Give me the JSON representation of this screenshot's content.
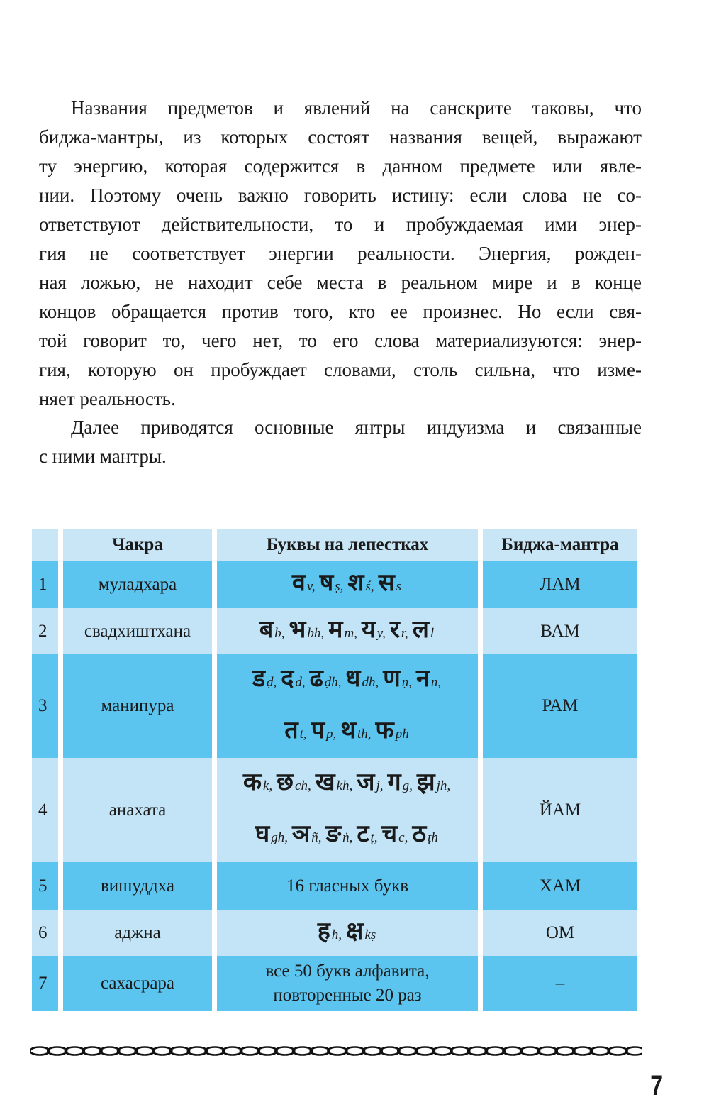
{
  "paragraphs": [
    {
      "lines": [
        "Названия предметов и явлений на санскрите таковы, что",
        "биджа-мантры, из которых состоят названия вещей, выражают",
        "ту энергию, которая содержится в данном предмете или явле-",
        "нии. Поэтому очень важно говорить истину: если слова не со-",
        "ответствуют действительности, то и пробуждаемая ими энер-",
        "гия не соответствует энергии реальности. Энергия, рожден-",
        "ная ложью, не находит себе места в реальном мире и в конце",
        "концов обращается против того, кто ее произнес. Но если свя-",
        "той говорит то, чего нет, то его слова материализуются: энер-",
        "гия, которую он пробуждает словами, столь сильна, что изме-",
        "няет реальность."
      ]
    },
    {
      "lines": [
        "Далее приводятся основные янтры индуизма и связанные",
        "с ними мантры."
      ]
    }
  ],
  "table": {
    "headers": [
      "",
      "Чакра",
      "Буквы на лепестках",
      "Биджа-мантра"
    ],
    "colors": {
      "dark": "#5cc5ef",
      "light": "#c3e4f6"
    },
    "rows": [
      {
        "num": "1",
        "chakra": "муладхара",
        "shade": "dark",
        "letter_lines": [
          [
            {
              "d": "व",
              "t": "v,"
            },
            {
              "d": "ष",
              "t": "ṣ,"
            },
            {
              "d": "श",
              "t": "ś,"
            },
            {
              "d": "स",
              "t": "s"
            }
          ]
        ],
        "mantra": "ЛАМ"
      },
      {
        "num": "2",
        "chakra": "свадхиштхана",
        "shade": "light",
        "letter_lines": [
          [
            {
              "d": "ब",
              "t": "b,"
            },
            {
              "d": "भ",
              "t": "bh,"
            },
            {
              "d": "म",
              "t": "m,"
            },
            {
              "d": "य",
              "t": "y,"
            },
            {
              "d": "र",
              "t": "r,"
            },
            {
              "d": "ल",
              "t": "l"
            }
          ]
        ],
        "mantra": "ВАМ"
      },
      {
        "num": "3",
        "chakra": "манипура",
        "shade": "dark",
        "letter_lines": [
          [
            {
              "d": "ड",
              "t": "ḍ,"
            },
            {
              "d": "द",
              "t": "d,"
            },
            {
              "d": "ढ",
              "t": "ḍh,"
            },
            {
              "d": "ध",
              "t": "dh,"
            },
            {
              "d": "ण",
              "t": "ṇ,"
            },
            {
              "d": "न",
              "t": "n,"
            }
          ],
          [
            {
              "d": "त",
              "t": "t,"
            },
            {
              "d": "प",
              "t": "p,"
            },
            {
              "d": "थ",
              "t": "th,"
            },
            {
              "d": "फ",
              "t": "ph"
            }
          ]
        ],
        "mantra": "РАМ"
      },
      {
        "num": "4",
        "chakra": "анахата",
        "shade": "light",
        "letter_lines": [
          [
            {
              "d": "क",
              "t": "k,"
            },
            {
              "d": "छ",
              "t": "ch,"
            },
            {
              "d": "ख",
              "t": "kh,"
            },
            {
              "d": "ज",
              "t": "j,"
            },
            {
              "d": "ग",
              "t": "g,"
            },
            {
              "d": "झ",
              "t": "jh,"
            }
          ],
          [
            {
              "d": "घ",
              "t": "gh,"
            },
            {
              "d": "ञ",
              "t": "ñ,"
            },
            {
              "d": "ङ",
              "t": "ṅ,"
            },
            {
              "d": "ट",
              "t": "ṭ,"
            },
            {
              "d": "च",
              "t": "c,"
            },
            {
              "d": "ठ",
              "t": "ṭh"
            }
          ]
        ],
        "mantra": "ЙАМ"
      },
      {
        "num": "5",
        "chakra": "вишуддха",
        "shade": "dark",
        "text": "16 гласных букв",
        "mantra": "ХАМ"
      },
      {
        "num": "6",
        "chakra": "аджна",
        "shade": "light",
        "letter_lines": [
          [
            {
              "d": "ह",
              "t": "h,"
            },
            {
              "d": "क्ष",
              "t": "kṣ"
            }
          ]
        ],
        "mantra": "ОМ"
      },
      {
        "num": "7",
        "chakra": "сахасрара",
        "shade": "dark",
        "text_lines": [
          "все 50 букв алфавита,",
          "повторенные 20 раз"
        ],
        "mantra": "–"
      }
    ]
  },
  "page_number": "7"
}
